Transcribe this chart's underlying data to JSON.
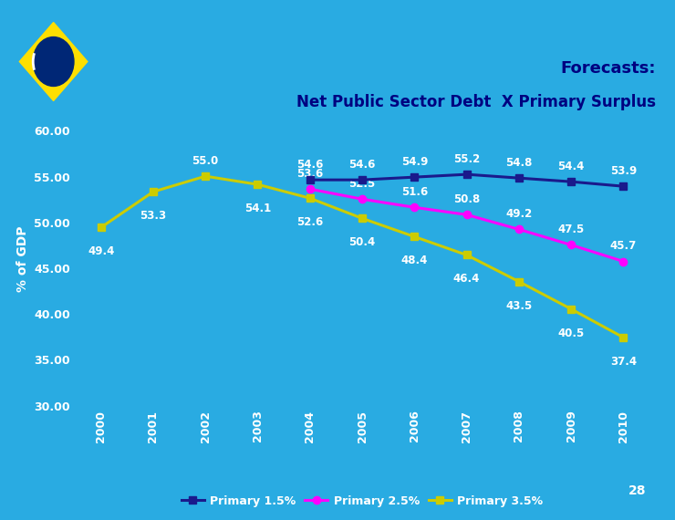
{
  "title_line1": "Forecasts:",
  "title_line2": "Net Public Sector Debt  X Primary Surplus",
  "years": [
    2000,
    2001,
    2002,
    2003,
    2004,
    2005,
    2006,
    2007,
    2008,
    2009,
    2010
  ],
  "primary_15": [
    null,
    null,
    null,
    null,
    54.6,
    54.6,
    54.9,
    55.2,
    54.8,
    54.4,
    53.9
  ],
  "primary_25": [
    null,
    null,
    null,
    null,
    53.6,
    52.5,
    51.6,
    50.8,
    49.2,
    47.5,
    45.7
  ],
  "primary_35": [
    49.4,
    53.3,
    55.0,
    54.1,
    52.6,
    50.4,
    48.4,
    46.4,
    43.5,
    40.5,
    37.4
  ],
  "p15_label_offsets": [
    0,
    0,
    0,
    0,
    8,
    8,
    8,
    8,
    8,
    8,
    8
  ],
  "p25_label_offsets": [
    0,
    0,
    0,
    0,
    8,
    8,
    8,
    8,
    8,
    8,
    8
  ],
  "p35_label_offsets": [
    -14,
    -14,
    8,
    -14,
    -14,
    -14,
    -14,
    -14,
    -14,
    -14,
    -14
  ],
  "color_15": "#1a1a8c",
  "color_25": "#FF00FF",
  "color_35": "#CCCC00",
  "bg_color": "#29ABE2",
  "header_top_color": "#C8E6F5",
  "header_mid_color": "#87CEEB",
  "flag_green": "#009B3A",
  "flag_yellow": "#FEDF00",
  "flag_blue": "#002776",
  "ylabel": "% of GDP",
  "ylim": [
    30.0,
    62.0
  ],
  "yticks": [
    30.0,
    35.0,
    40.0,
    45.0,
    50.0,
    55.0,
    60.0
  ],
  "label_15": "Primary 1.5%",
  "label_25": "Primary 2.5%",
  "label_35": "Primary 3.5%",
  "page_num": "28",
  "title_color": "#000080"
}
